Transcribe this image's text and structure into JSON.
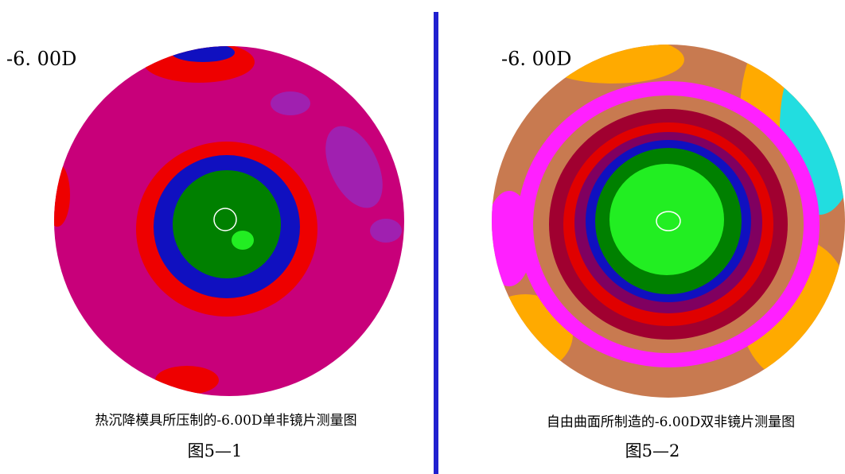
{
  "panels": [
    {
      "label": "-6. 00D",
      "caption": "热沉降模具所压制的-6.00D单非镜片测量图",
      "figure": "图5—1"
    },
    {
      "label": "-6. 00D",
      "caption": "自由曲面所制造的-6.00D双非镜片测量图",
      "figure": "图5—2"
    }
  ]
}
